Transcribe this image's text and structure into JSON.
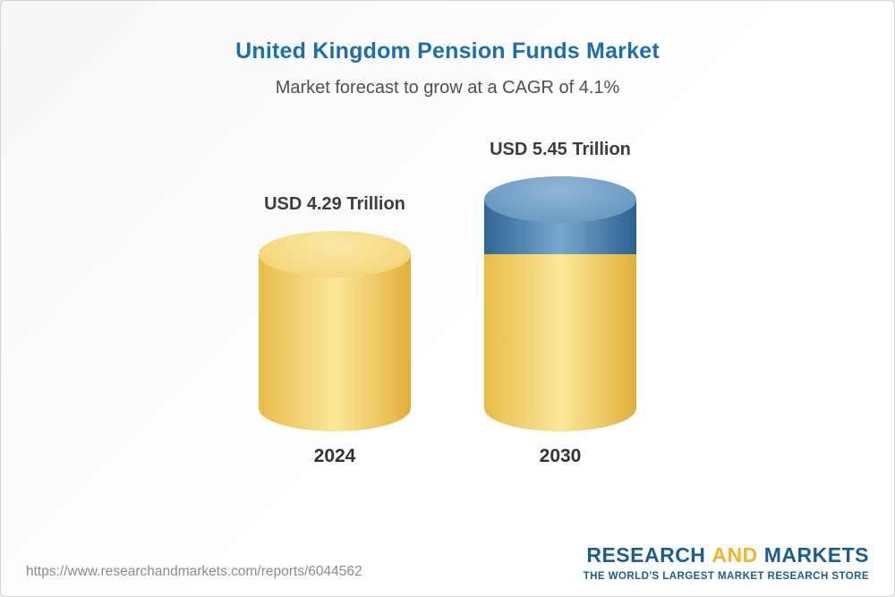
{
  "theme": {
    "title-blue": "#1c6fae",
    "bar-yellow": "#f6d87e",
    "bar-blue": "#4e81ad",
    "logo-blue": "#1b5e92",
    "logo-yellow": "#f0b42d"
  },
  "header": {
    "title": "United Kingdom Pension Funds Market",
    "subtitle": "Market forecast to grow at a CAGR of 4.1%"
  },
  "chart_data": {
    "type": "bar",
    "variant": "3d-cylinder",
    "title": "United Kingdom Pension Funds Market",
    "subtitle": "Market forecast to grow at a CAGR of 4.1%",
    "cagr_percent": 4.1,
    "unit": "USD Trillion",
    "categories": [
      "2024",
      "2030"
    ],
    "values": [
      4.29,
      5.45
    ],
    "labels": [
      "USD 4.29 Trillion",
      "USD 5.45 Trillion"
    ],
    "ylim": [
      0,
      5.45
    ],
    "grid": false,
    "legend": false,
    "notes": "2030 cylinder shows growth segment (5.45 - 4.29) highlighted in blue on top of yellow base",
    "colors": {
      "base_segment": "#f6d87e",
      "growth_segment": "#4e81ad"
    }
  },
  "footer": {
    "url": "https://www.researchandmarkets.com/reports/6044562",
    "logo": {
      "research": "RESEARCH",
      "and": "AND",
      "markets": "MARKETS",
      "tagline": "THE WORLD'S LARGEST MARKET RESEARCH STORE"
    }
  }
}
